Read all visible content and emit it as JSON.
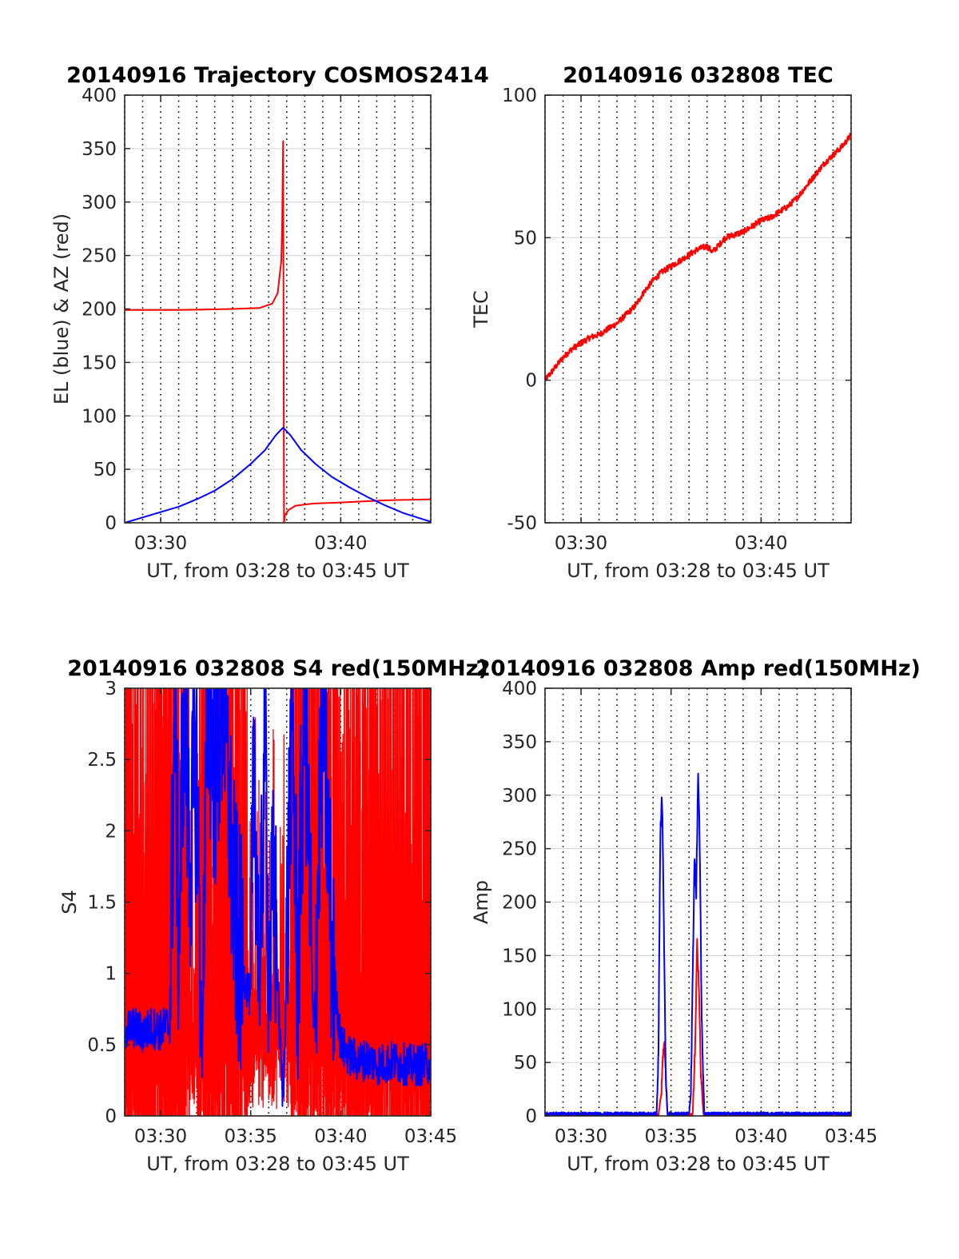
{
  "figure": {
    "background": "#ffffff"
  },
  "colors": {
    "red": "#ff0000",
    "blue": "#0000ff",
    "grid": "#dcdcdc",
    "axis": "#262626"
  },
  "chart_data": [
    {
      "id": "trajectory",
      "type": "line",
      "title": "20140916 Trajectory COSMOS2414",
      "xlabel": "UT, from 03:28 to 03:45 UT",
      "ylabel": "EL (blue) & AZ (red)",
      "xlim": [
        208,
        225
      ],
      "ylim": [
        0,
        400
      ],
      "xticks": [
        {
          "value": 210,
          "label": "03:30"
        },
        {
          "value": 220,
          "label": "03:40"
        }
      ],
      "yticks": [
        0,
        50,
        100,
        150,
        200,
        250,
        300,
        350,
        400
      ],
      "minor_x_step": 1,
      "grid": true,
      "series": [
        {
          "color": "red",
          "style": "azimuth",
          "x": [
            208,
            211,
            214,
            215.5,
            216.2,
            216.5,
            216.7,
            216.75,
            216.8,
            216.85,
            216.9,
            217.1,
            217.5,
            218.5,
            220,
            222.5,
            225
          ],
          "y": [
            199,
            199,
            200,
            201,
            205,
            215,
            245,
            280,
            357,
            0,
            7,
            12,
            16,
            18,
            19,
            21,
            22
          ]
        },
        {
          "color": "blue",
          "style": "elevation",
          "x": [
            208,
            209,
            210,
            211,
            212,
            213,
            214,
            215,
            215.8,
            216.4,
            216.8,
            217.2,
            217.8,
            218.6,
            219.5,
            220.5,
            221.5,
            222.5,
            223.5,
            225
          ],
          "y": [
            0,
            5,
            10,
            15,
            22,
            30,
            41,
            55,
            68,
            82,
            89,
            82,
            68,
            55,
            43,
            33,
            24,
            16,
            9,
            1
          ]
        }
      ]
    },
    {
      "id": "tec",
      "type": "line",
      "title": "20140916 032808 TEC",
      "xlabel": "UT, from 03:28 to 03:45 UT",
      "ylabel": "TEC",
      "xlim": [
        208,
        225
      ],
      "ylim": [
        -50,
        100
      ],
      "xticks": [
        {
          "value": 210,
          "label": "03:30"
        },
        {
          "value": 220,
          "label": "03:40"
        }
      ],
      "yticks": [
        -50,
        0,
        50,
        100
      ],
      "minor_x_step": 1,
      "grid": true,
      "series": [
        {
          "color": "red",
          "x": [
            208,
            208.5,
            209,
            209.5,
            210,
            210.5,
            211,
            211.5,
            212,
            212.5,
            213,
            213.5,
            214,
            214.5,
            215,
            215.5,
            216,
            216.5,
            217,
            217.3,
            217.6,
            218,
            218.5,
            219,
            219.5,
            220,
            220.5,
            221,
            221.5,
            222,
            222.5,
            223,
            223.5,
            224,
            224.5,
            225
          ],
          "y": [
            0,
            4,
            8,
            11,
            13,
            15,
            16,
            18,
            20,
            23,
            26,
            31,
            35,
            38,
            40,
            42,
            44,
            46,
            47,
            45,
            47,
            50,
            51,
            52,
            54,
            56,
            57,
            59,
            61,
            64,
            68,
            72,
            76,
            79,
            82,
            86
          ]
        }
      ]
    },
    {
      "id": "s4",
      "type": "line",
      "title": "20140916 032808 S4 red(150MHz)",
      "xlabel": "UT, from 03:28 to 03:45 UT",
      "ylabel": "S4",
      "xlim": [
        208,
        225
      ],
      "ylim": [
        0,
        3
      ],
      "xticks": [
        {
          "value": 210,
          "label": "03:30"
        },
        {
          "value": 215,
          "label": "03:35"
        },
        {
          "value": 220,
          "label": "03:40"
        },
        {
          "value": 225,
          "label": "03:45"
        }
      ],
      "yticks": [
        0,
        0.5,
        1,
        1.5,
        2,
        2.5,
        3
      ],
      "minor_x_step": 1,
      "grid": true,
      "series": [
        {
          "color": "red",
          "style": "noise",
          "x": [
            208,
            225
          ],
          "y": [
            0,
            3
          ]
        },
        {
          "color": "blue",
          "x": [
            208,
            208.5,
            209,
            209.5,
            210,
            210.5,
            210.8,
            211,
            211.3,
            211.6,
            212,
            212.3,
            212.6,
            213,
            213.5,
            214,
            214.3,
            214.6,
            215,
            215.2,
            215.5,
            215.8,
            216,
            216.3,
            216.6,
            216.8,
            217,
            217.3,
            217.6,
            218,
            218.5,
            219,
            219.5,
            220,
            220.5,
            221,
            221.5,
            222,
            223,
            224,
            225
          ],
          "y": [
            0.6,
            0.62,
            0.58,
            0.62,
            0.6,
            0.65,
            3,
            1.2,
            3,
            1.8,
            2.5,
            0.4,
            3,
            2.4,
            3,
            1.6,
            1.2,
            1.0,
            0.8,
            2.6,
            0.7,
            3,
            0.9,
            1.6,
            0.6,
            0.1,
            1.1,
            3,
            0.9,
            3,
            0.5,
            3,
            1.2,
            0.5,
            0.42,
            0.38,
            0.4,
            0.36,
            0.38,
            0.35,
            0.37
          ]
        }
      ]
    },
    {
      "id": "amp",
      "type": "line",
      "title": "20140916 032808 Amp red(150MHz)",
      "xlabel": "UT, from 03:28 to 03:45 UT",
      "ylabel": "Amp",
      "xlim": [
        208,
        225
      ],
      "ylim": [
        0,
        400
      ],
      "xticks": [
        {
          "value": 210,
          "label": "03:30"
        },
        {
          "value": 215,
          "label": "03:35"
        },
        {
          "value": 220,
          "label": "03:40"
        },
        {
          "value": 225,
          "label": "03:45"
        }
      ],
      "yticks": [
        0,
        50,
        100,
        150,
        200,
        250,
        300,
        350,
        400
      ],
      "minor_x_step": 1,
      "grid": true,
      "series": [
        {
          "color": "red",
          "x": [
            208,
            214.3,
            214.45,
            214.55,
            214.65,
            214.8,
            216.2,
            216.35,
            216.45,
            216.55,
            216.65,
            216.8,
            225
          ],
          "y": [
            1,
            1,
            20,
            60,
            65,
            1,
            1,
            70,
            165,
            120,
            40,
            1,
            1
          ]
        },
        {
          "color": "blue",
          "x": [
            208,
            214.2,
            214.3,
            214.4,
            214.5,
            214.55,
            214.6,
            214.7,
            214.8,
            216.0,
            216.1,
            216.2,
            216.3,
            216.4,
            216.5,
            216.6,
            216.7,
            216.85,
            225
          ],
          "y": [
            2,
            2,
            60,
            265,
            300,
            250,
            180,
            40,
            2,
            2,
            20,
            130,
            240,
            210,
            320,
            250,
            90,
            2,
            2
          ]
        }
      ]
    }
  ]
}
